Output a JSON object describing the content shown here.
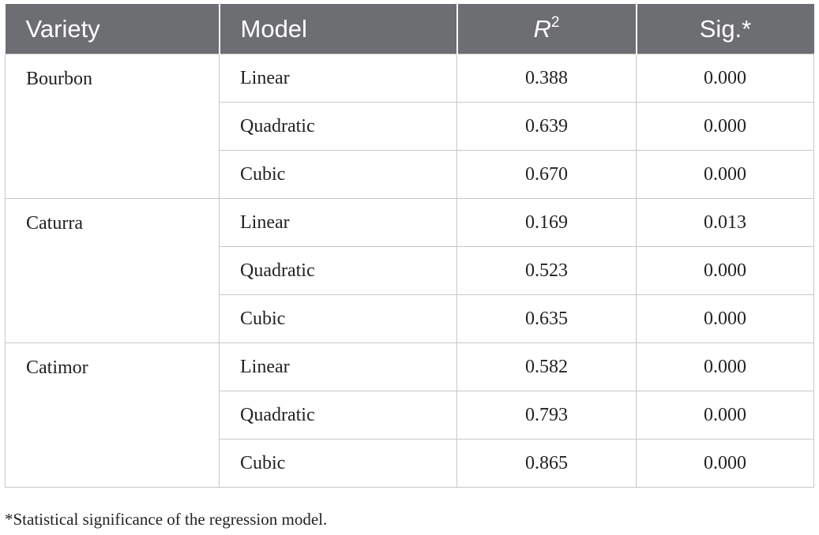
{
  "table": {
    "header": [
      "Variety",
      "Model",
      {
        "base": "R",
        "sup": "2"
      },
      "Sig.*"
    ],
    "groups": [
      {
        "variety": "Bourbon",
        "rows": [
          [
            "Linear",
            "0.388",
            "0.000"
          ],
          [
            "Quadratic",
            "0.639",
            "0.000"
          ],
          [
            "Cubic",
            "0.670",
            "0.000"
          ]
        ]
      },
      {
        "variety": "Caturra",
        "rows": [
          [
            "Linear",
            "0.169",
            "0.013"
          ],
          [
            "Quadratic",
            "0.523",
            "0.000"
          ],
          [
            "Cubic",
            "0.635",
            "0.000"
          ]
        ]
      },
      {
        "variety": "Catimor",
        "rows": [
          [
            "Linear",
            "0.582",
            "0.000"
          ],
          [
            "Quadratic",
            "0.793",
            "0.000"
          ],
          [
            "Cubic",
            "0.865",
            "0.000"
          ]
        ]
      }
    ],
    "footnote": "*Statistical significance of the regression model."
  }
}
